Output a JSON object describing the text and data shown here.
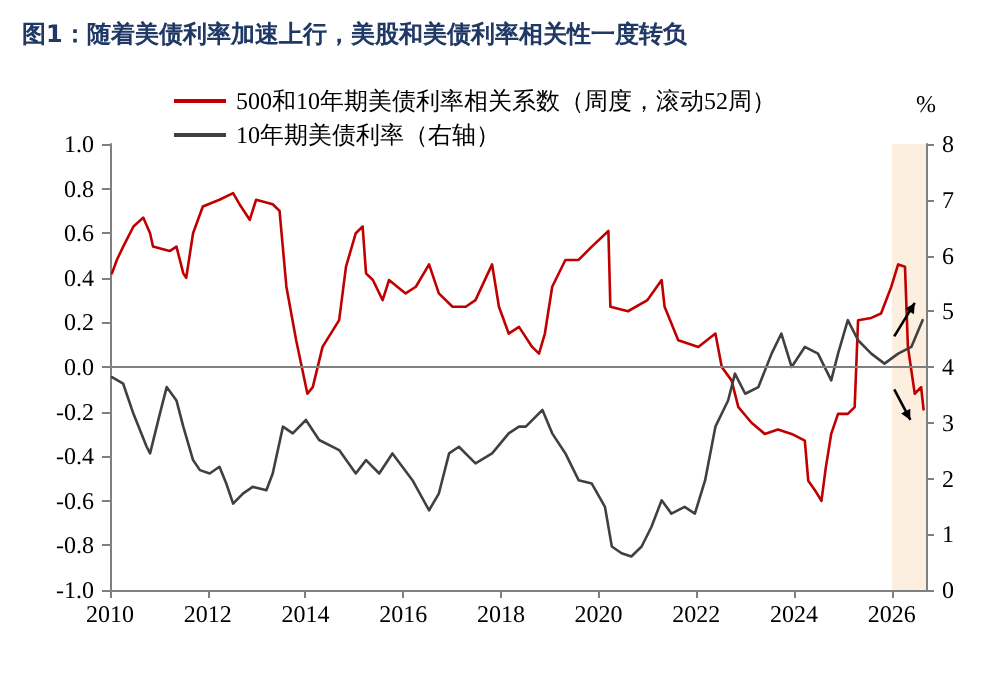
{
  "chart_data": {
    "type": "line",
    "title": "图1：随着美债利率加速上行，美股和美债利率相关性一度转负",
    "y2label": "%",
    "xlim": [
      2010,
      2026.7
    ],
    "xticks": [
      2010,
      2012,
      2014,
      2016,
      2018,
      2020,
      2022,
      2024,
      2026
    ],
    "ylim": [
      -1,
      1
    ],
    "yticks": [
      {
        "value": -1,
        "label": "-1.0"
      },
      {
        "value": -0.8,
        "label": "-0.8"
      },
      {
        "value": -0.6,
        "label": "-0.6"
      },
      {
        "value": -0.4,
        "label": "-0.4"
      },
      {
        "value": -0.2,
        "label": "-0.2"
      },
      {
        "value": 0,
        "label": "0.0"
      },
      {
        "value": 0.2,
        "label": "0.2"
      },
      {
        "value": 0.4,
        "label": "0.4"
      },
      {
        "value": 0.6,
        "label": "0.6"
      },
      {
        "value": 0.8,
        "label": "0.8"
      },
      {
        "value": 1,
        "label": "1.0"
      }
    ],
    "y2lim": [
      0,
      8
    ],
    "y2ticks": [
      0,
      1,
      2,
      3,
      4,
      5,
      6,
      7,
      8
    ],
    "grid": false,
    "legend": "top left",
    "marker": "none",
    "line_style": "solid",
    "ref_lines": [
      {
        "axis": "y",
        "value": 0,
        "color": "#808080"
      }
    ],
    "bands": [
      {
        "axis": "x",
        "from": 2026.0,
        "to": 2026.7,
        "color": "#fcefe0"
      }
    ],
    "series": [
      {
        "name": "500和10年期美债利率相关系数（周度，滚动52周）",
        "color": "#c00000",
        "x": [
          2010.04,
          2010.14,
          2010.27,
          2010.48,
          2010.68,
          2010.82,
          2010.88,
          2011.22,
          2011.36,
          2011.5,
          2011.56,
          2011.7,
          2011.9,
          2012.24,
          2012.52,
          2012.65,
          2012.86,
          2012.99,
          2013.33,
          2013.47,
          2013.61,
          2013.81,
          2014.04,
          2014.15,
          2014.35,
          2014.69,
          2014.83,
          2015.03,
          2015.17,
          2015.24,
          2015.38,
          2015.58,
          2015.71,
          2016.05,
          2016.26,
          2016.53,
          2016.73,
          2017.01,
          2017.28,
          2017.48,
          2017.82,
          2017.96,
          2018.16,
          2018.37,
          2018.64,
          2018.78,
          2018.9,
          2019.05,
          2019.32,
          2019.59,
          2019.86,
          2020.2,
          2020.24,
          2020.6,
          2021.0,
          2021.29,
          2021.35,
          2021.63,
          2022.04,
          2022.39,
          2022.52,
          2022.72,
          2022.86,
          2023.13,
          2023.4,
          2023.67,
          2023.95,
          2024.22,
          2024.29,
          2024.42,
          2024.56,
          2024.65,
          2024.76,
          2024.9,
          2025.1,
          2025.24,
          2025.31,
          2025.58,
          2025.78,
          2025.99,
          2026.13,
          2026.27,
          2026.33,
          2026.47,
          2026.6,
          2026.65
        ],
        "values": [
          0.42,
          0.48,
          0.54,
          0.63,
          0.67,
          0.6,
          0.54,
          0.52,
          0.54,
          0.42,
          0.4,
          0.6,
          0.72,
          0.75,
          0.78,
          0.73,
          0.66,
          0.75,
          0.73,
          0.7,
          0.36,
          0.12,
          -0.12,
          -0.09,
          0.09,
          0.21,
          0.45,
          0.6,
          0.63,
          0.42,
          0.39,
          0.3,
          0.39,
          0.33,
          0.36,
          0.46,
          0.33,
          0.27,
          0.27,
          0.3,
          0.46,
          0.27,
          0.15,
          0.18,
          0.09,
          0.06,
          0.15,
          0.36,
          0.48,
          0.48,
          0.54,
          0.61,
          0.27,
          0.25,
          0.3,
          0.39,
          0.27,
          0.12,
          0.09,
          0.15,
          0.0,
          -0.06,
          -0.18,
          -0.25,
          -0.3,
          -0.28,
          -0.3,
          -0.33,
          -0.51,
          -0.55,
          -0.6,
          -0.45,
          -0.3,
          -0.21,
          -0.21,
          -0.18,
          0.21,
          0.22,
          0.24,
          0.36,
          0.46,
          0.45,
          0.09,
          -0.12,
          -0.09,
          -0.19
        ]
      },
      {
        "name": "10年期美债利率（右轴）",
        "color": "#404040",
        "axis": "y2",
        "x": [
          2010.04,
          2010.27,
          2010.48,
          2010.75,
          2010.82,
          2011.02,
          2011.16,
          2011.36,
          2011.5,
          2011.7,
          2011.84,
          2012.04,
          2012.24,
          2012.38,
          2012.52,
          2012.72,
          2012.92,
          2013.2,
          2013.33,
          2013.54,
          2013.74,
          2014.01,
          2014.28,
          2014.69,
          2015.03,
          2015.24,
          2015.51,
          2015.78,
          2016.19,
          2016.53,
          2016.73,
          2016.94,
          2017.14,
          2017.48,
          2017.82,
          2018.16,
          2018.37,
          2018.51,
          2018.85,
          2019.05,
          2019.32,
          2019.59,
          2019.86,
          2020.13,
          2020.27,
          2020.47,
          2020.67,
          2020.88,
          2021.08,
          2021.29,
          2021.49,
          2021.76,
          2021.97,
          2022.18,
          2022.39,
          2022.65,
          2022.79,
          2023.0,
          2023.27,
          2023.54,
          2023.74,
          2023.95,
          2024.22,
          2024.49,
          2024.76,
          2024.9,
          2025.1,
          2025.31,
          2025.58,
          2025.85,
          2026.13,
          2026.4,
          2026.63
        ],
        "values": [
          3.82,
          3.7,
          3.16,
          2.57,
          2.45,
          3.16,
          3.64,
          3.4,
          2.93,
          2.33,
          2.15,
          2.09,
          2.21,
          1.91,
          1.55,
          1.73,
          1.85,
          1.79,
          2.09,
          2.93,
          2.81,
          3.05,
          2.69,
          2.51,
          2.09,
          2.33,
          2.09,
          2.45,
          1.97,
          1.43,
          1.73,
          2.45,
          2.57,
          2.27,
          2.45,
          2.81,
          2.93,
          2.93,
          3.23,
          2.81,
          2.45,
          1.97,
          1.91,
          1.49,
          0.78,
          0.66,
          0.6,
          0.78,
          1.13,
          1.61,
          1.37,
          1.49,
          1.37,
          1.97,
          2.93,
          3.4,
          3.88,
          3.52,
          3.64,
          4.24,
          4.6,
          4.0,
          4.36,
          4.24,
          3.76,
          4.24,
          4.84,
          4.48,
          4.24,
          4.06,
          4.24,
          4.36,
          4.84
        ]
      }
    ]
  }
}
